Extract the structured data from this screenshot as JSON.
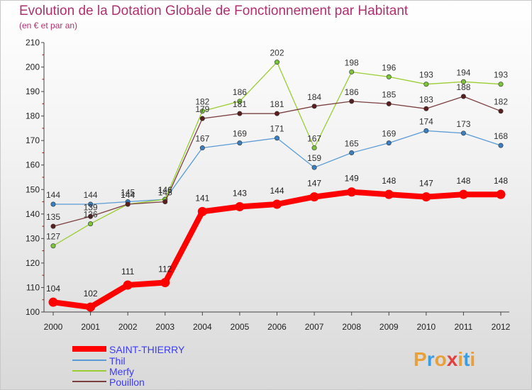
{
  "chart_data": {
    "type": "line",
    "title": "Evolution de la Dotation Globale de Fonctionnement par Habitant",
    "subtitle": "(en € et par an)",
    "xlabel": "",
    "ylabel": "",
    "ylim": [
      100,
      210
    ],
    "yticks": [
      100,
      110,
      120,
      130,
      140,
      150,
      160,
      170,
      180,
      190,
      200,
      210
    ],
    "grid": false,
    "legend_position": "bottom-left",
    "categories": [
      "2000",
      "2001",
      "2002",
      "2003",
      "2004",
      "2005",
      "2006",
      "2007",
      "2008",
      "2009",
      "2010",
      "2011",
      "2012"
    ],
    "series": [
      {
        "name": "SAINT-THIERRY",
        "color": "#ff0000",
        "marker_color": "#ff0000",
        "values": [
          104,
          102,
          111,
          112,
          141,
          143,
          144,
          147,
          149,
          148,
          147,
          148,
          148
        ]
      },
      {
        "name": "Thil",
        "color": "#5b9bd5",
        "marker_color": "#3b7fc0",
        "values": [
          144,
          144,
          145,
          146,
          167,
          169,
          171,
          159,
          165,
          169,
          174,
          173,
          168
        ]
      },
      {
        "name": "Merfy",
        "color": "#9acd32",
        "marker_color": "#7cc43a",
        "values": [
          127,
          136,
          144,
          146,
          182,
          186,
          202,
          167,
          198,
          196,
          193,
          194,
          193
        ]
      },
      {
        "name": "Pouillon",
        "color": "#7b3f3f",
        "marker_color": "#5a1f1f",
        "values": [
          135,
          139,
          144,
          145,
          179,
          181,
          181,
          184,
          186,
          185,
          183,
          188,
          182
        ]
      }
    ]
  },
  "brand": {
    "letters": [
      "P",
      "r",
      "o",
      "x",
      "i",
      "t",
      "i"
    ],
    "colors": [
      "#e8a03a",
      "#3c9de0",
      "#e8a03a",
      "#e04040",
      "#e8a03a",
      "#3c9de0",
      "#e8a03a"
    ]
  },
  "colors": {
    "title": "#b03070",
    "legend_text": "#3a3aff",
    "axis": "#444444"
  }
}
